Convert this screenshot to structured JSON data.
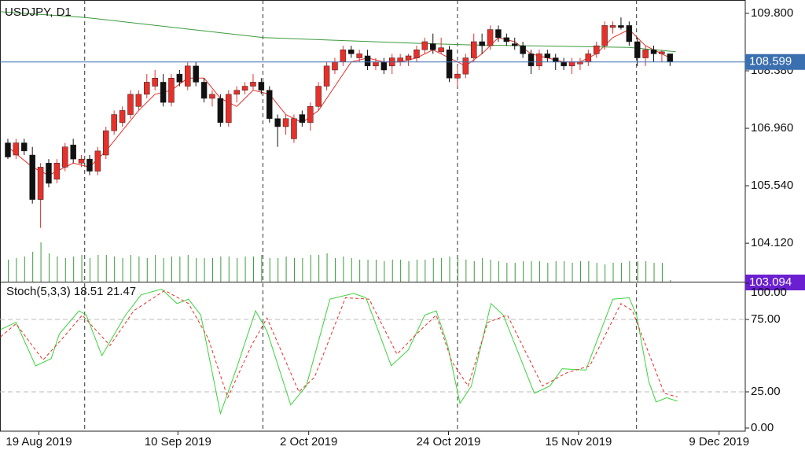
{
  "chart_data": [
    {
      "type": "candlestick",
      "title": "USDJPY, D1",
      "xlim": [
        -0.96,
        90.2
      ],
      "xticks": [
        {
          "value": 3.8,
          "label": "19 Aug 2019"
        },
        {
          "value": 20.8,
          "label": "10 Sep 2019"
        },
        {
          "value": 36.8,
          "label": "2 Oct 2019"
        },
        {
          "value": 53.9,
          "label": "24 Oct 2019"
        },
        {
          "value": 69.8,
          "label": "15 Nov 2019"
        },
        {
          "value": 87.0,
          "label": "9 Dec 2019"
        }
      ],
      "separators": [
        9.4,
        31.2,
        55,
        76.9
      ],
      "ylim": [
        103.17,
        110.13
      ],
      "yticks": [
        {
          "value": 109.8,
          "label": "109.800"
        },
        {
          "value": 108.38,
          "label": "108.380"
        },
        {
          "value": 106.96,
          "label": "106.960"
        },
        {
          "value": 105.54,
          "label": "105.540"
        },
        {
          "value": 104.12,
          "label": "104.120"
        }
      ],
      "up_color": "#e8302a",
      "down_color": "#111111",
      "ohlc": [
        [
          106.6,
          106.7,
          106.2,
          106.25
        ],
        [
          106.3,
          106.7,
          106.2,
          106.6
        ],
        [
          106.6,
          106.7,
          106.3,
          106.4
        ],
        [
          106.3,
          106.5,
          105.1,
          105.2
        ],
        [
          105.2,
          106.1,
          104.5,
          106.0
        ],
        [
          106.1,
          106.2,
          105.5,
          105.6
        ],
        [
          105.7,
          106.2,
          105.6,
          106.1
        ],
        [
          106.0,
          106.6,
          105.9,
          106.5
        ],
        [
          106.55,
          106.7,
          106.1,
          106.2
        ],
        [
          106.1,
          106.3,
          106.0,
          106.2
        ],
        [
          106.2,
          106.3,
          105.8,
          105.9
        ],
        [
          105.9,
          106.5,
          105.8,
          106.4
        ],
        [
          106.3,
          107.0,
          106.2,
          106.9
        ],
        [
          106.9,
          107.4,
          106.8,
          107.3
        ],
        [
          107.1,
          107.5,
          107.0,
          107.4
        ],
        [
          107.3,
          107.9,
          107.2,
          107.8
        ],
        [
          107.5,
          107.9,
          107.4,
          107.8
        ],
        [
          107.8,
          108.3,
          107.7,
          108.1
        ],
        [
          108.0,
          108.4,
          107.9,
          108.2
        ],
        [
          108.1,
          108.3,
          107.5,
          107.6
        ],
        [
          107.6,
          108.3,
          107.5,
          108.2
        ],
        [
          108.3,
          108.4,
          108.0,
          108.1
        ],
        [
          108.0,
          108.6,
          107.9,
          108.5
        ],
        [
          108.5,
          108.6,
          108.0,
          108.1
        ],
        [
          108.1,
          108.2,
          107.6,
          107.7
        ],
        [
          107.7,
          107.9,
          107.5,
          107.8
        ],
        [
          107.7,
          107.8,
          107.0,
          107.1
        ],
        [
          107.1,
          107.9,
          107.0,
          107.8
        ],
        [
          107.8,
          108.0,
          107.6,
          107.9
        ],
        [
          107.9,
          108.1,
          107.8,
          108.0
        ],
        [
          108.0,
          108.3,
          107.9,
          108.1
        ],
        [
          108.1,
          108.2,
          107.8,
          107.9
        ],
        [
          107.9,
          108.0,
          107.1,
          107.2
        ],
        [
          107.2,
          107.3,
          106.5,
          107.0
        ],
        [
          107.0,
          107.3,
          106.8,
          107.2
        ],
        [
          106.7,
          107.3,
          106.6,
          107.2
        ],
        [
          107.3,
          107.4,
          107.0,
          107.1
        ],
        [
          107.1,
          107.6,
          106.9,
          107.5
        ],
        [
          107.5,
          108.1,
          107.4,
          108.0
        ],
        [
          108.0,
          108.6,
          107.9,
          108.5
        ],
        [
          108.4,
          108.7,
          108.3,
          108.6
        ],
        [
          108.6,
          109.0,
          108.5,
          108.9
        ],
        [
          108.9,
          109.0,
          108.7,
          108.8
        ],
        [
          108.7,
          108.9,
          108.6,
          108.8
        ],
        [
          108.75,
          108.9,
          108.4,
          108.5
        ],
        [
          108.5,
          108.7,
          108.4,
          108.6
        ],
        [
          108.6,
          108.7,
          108.3,
          108.4
        ],
        [
          108.5,
          108.8,
          108.3,
          108.7
        ],
        [
          108.6,
          108.8,
          108.5,
          108.7
        ],
        [
          108.65,
          108.8,
          108.5,
          108.75
        ],
        [
          108.7,
          109.0,
          108.6,
          108.9
        ],
        [
          108.9,
          109.2,
          108.8,
          109.1
        ],
        [
          109.05,
          109.3,
          108.8,
          108.9
        ],
        [
          108.85,
          109.2,
          108.8,
          108.95
        ],
        [
          108.9,
          109.0,
          108.1,
          108.2
        ],
        [
          108.2,
          108.5,
          108.0,
          108.3
        ],
        [
          108.3,
          108.8,
          108.2,
          108.7
        ],
        [
          108.7,
          109.3,
          108.6,
          109.1
        ],
        [
          109.1,
          109.3,
          108.8,
          109.0
        ],
        [
          109.0,
          109.5,
          108.9,
          109.4
        ],
        [
          109.4,
          109.5,
          109.1,
          109.2
        ],
        [
          109.2,
          109.3,
          109.0,
          109.1
        ],
        [
          109.05,
          109.2,
          108.9,
          109.0
        ],
        [
          109.0,
          109.1,
          108.7,
          108.8
        ],
        [
          108.8,
          108.9,
          108.3,
          108.5
        ],
        [
          108.5,
          108.9,
          108.4,
          108.8
        ],
        [
          108.8,
          108.9,
          108.6,
          108.7
        ],
        [
          108.7,
          108.8,
          108.4,
          108.6
        ],
        [
          108.6,
          108.7,
          108.4,
          108.5
        ],
        [
          108.5,
          108.7,
          108.3,
          108.6
        ],
        [
          108.55,
          108.7,
          108.4,
          108.6
        ],
        [
          108.6,
          108.9,
          108.5,
          108.8
        ],
        [
          108.8,
          109.1,
          108.7,
          109.0
        ],
        [
          109.0,
          109.6,
          108.9,
          109.5
        ],
        [
          109.45,
          109.6,
          109.3,
          109.5
        ],
        [
          109.5,
          109.7,
          109.4,
          109.45
        ],
        [
          109.5,
          109.6,
          109.0,
          109.1
        ],
        [
          109.1,
          109.2,
          108.5,
          108.7
        ],
        [
          108.7,
          109.0,
          108.5,
          108.9
        ],
        [
          108.9,
          109.0,
          108.6,
          108.8
        ],
        [
          108.8,
          108.9,
          108.6,
          108.85
        ],
        [
          108.8,
          108.8,
          108.5,
          108.6
        ]
      ],
      "volume_color": "#3c9a3c",
      "volume": [
        28,
        30,
        32,
        38,
        50,
        36,
        32,
        30,
        32,
        34,
        30,
        34,
        34,
        32,
        30,
        34,
        32,
        30,
        34,
        30,
        32,
        32,
        34,
        30,
        30,
        30,
        32,
        32,
        30,
        32,
        32,
        34,
        30,
        30,
        32,
        30,
        30,
        34,
        34,
        36,
        30,
        32,
        30,
        28,
        28,
        28,
        26,
        28,
        28,
        26,
        28,
        28,
        30,
        30,
        32,
        30,
        28,
        26,
        30,
        28,
        26,
        24,
        24,
        26,
        26,
        26,
        24,
        26,
        26,
        24,
        26,
        26,
        24,
        22,
        24,
        24,
        26,
        26,
        26,
        24,
        24,
        2
      ],
      "overlays": [
        {
          "color": "#e8302a",
          "x": [
            0,
            3,
            5,
            8,
            10,
            12,
            14,
            16,
            18,
            20,
            22,
            24,
            26,
            28,
            30,
            32,
            34,
            36,
            38,
            40,
            42,
            44,
            46,
            48,
            50,
            52,
            54,
            56,
            58,
            60,
            62,
            64,
            66,
            68,
            70,
            72,
            74,
            76,
            78,
            80,
            81
          ],
          "values": [
            106.5,
            106.0,
            105.8,
            106.1,
            106.0,
            106.4,
            106.9,
            107.4,
            107.8,
            107.9,
            108.2,
            108.2,
            107.7,
            107.5,
            107.9,
            107.8,
            107.3,
            107.1,
            107.4,
            108.0,
            108.6,
            108.7,
            108.6,
            108.6,
            108.7,
            108.9,
            108.7,
            108.5,
            108.8,
            109.2,
            109.1,
            108.8,
            108.7,
            108.6,
            108.6,
            108.8,
            109.2,
            109.4,
            109.0,
            108.8,
            108.7
          ]
        },
        {
          "color": "#3c9a3c",
          "x": [
            -0.9,
            9.4,
            31.25,
            50,
            56.7,
            76,
            81.7
          ],
          "values": [
            109.84,
            109.7,
            109.2,
            109.06,
            109.02,
            108.96,
            108.85
          ]
        }
      ],
      "current_price": 108.599,
      "current_price_color": "#3a6fb0",
      "bottom_price": 103.094,
      "bottom_price_color": "#6a1fd1"
    },
    {
      "type": "line",
      "name": "Stoch(5,3,3)",
      "last_values": [
        18.51,
        21.47
      ],
      "ylim": [
        0,
        100
      ],
      "yticks": [
        {
          "value": 100,
          "label": "100.00"
        },
        {
          "value": 75,
          "label": "75.00"
        },
        {
          "value": 25,
          "label": "25.00"
        },
        {
          "value": 0,
          "label": "0.00"
        }
      ],
      "grid_levels": [
        75,
        25
      ],
      "series": [
        {
          "color": "#3cd23c",
          "dashed": false,
          "x": [
            -0.9,
            1.0,
            3.4,
            5.3,
            6.3,
            8.7,
            9.6,
            11.5,
            14.4,
            16.3,
            18.8,
            20.7,
            22.1,
            23.6,
            26.0,
            27.9,
            30.3,
            31.7,
            34.6,
            36.5,
            39.4,
            42.3,
            43.8,
            46.9,
            49.0,
            51.0,
            52.4,
            53.8,
            55.3,
            56.7,
            59.1,
            60.6,
            64.4,
            66.3,
            67.8,
            70.7,
            74.0,
            76.0,
            76.9,
            78.4,
            79.3,
            80.6,
            81.9
          ],
          "values": [
            68,
            73,
            43,
            48,
            65,
            81,
            78,
            50,
            78,
            92,
            96,
            86,
            89,
            78,
            10,
            40,
            81,
            67,
            16,
            29,
            89,
            93,
            90,
            43,
            54,
            78,
            81,
            57,
            17,
            29,
            86,
            78,
            24,
            29,
            41,
            40,
            89,
            90,
            78,
            32,
            18,
            21,
            18.51
          ]
        },
        {
          "color": "#e8302a",
          "dashed": true,
          "x": [
            -0.9,
            1.0,
            4.3,
            6.7,
            9.1,
            12.5,
            15.4,
            19.2,
            22.1,
            24.5,
            26.9,
            29.8,
            31.7,
            35.6,
            37.5,
            41.3,
            44.2,
            47.6,
            50.0,
            52.4,
            54.3,
            56.3,
            58.7,
            61.1,
            65.4,
            68.3,
            71.2,
            75.0,
            76.4,
            78.8,
            80.3,
            81.9
          ],
          "values": [
            63,
            72,
            47,
            62,
            78,
            57,
            81,
            95,
            86,
            62,
            21,
            57,
            76,
            25,
            35,
            90,
            89,
            51,
            65,
            78,
            46,
            29,
            73,
            78,
            29,
            38,
            43,
            86,
            81,
            46,
            24,
            21.47
          ]
        }
      ]
    }
  ]
}
